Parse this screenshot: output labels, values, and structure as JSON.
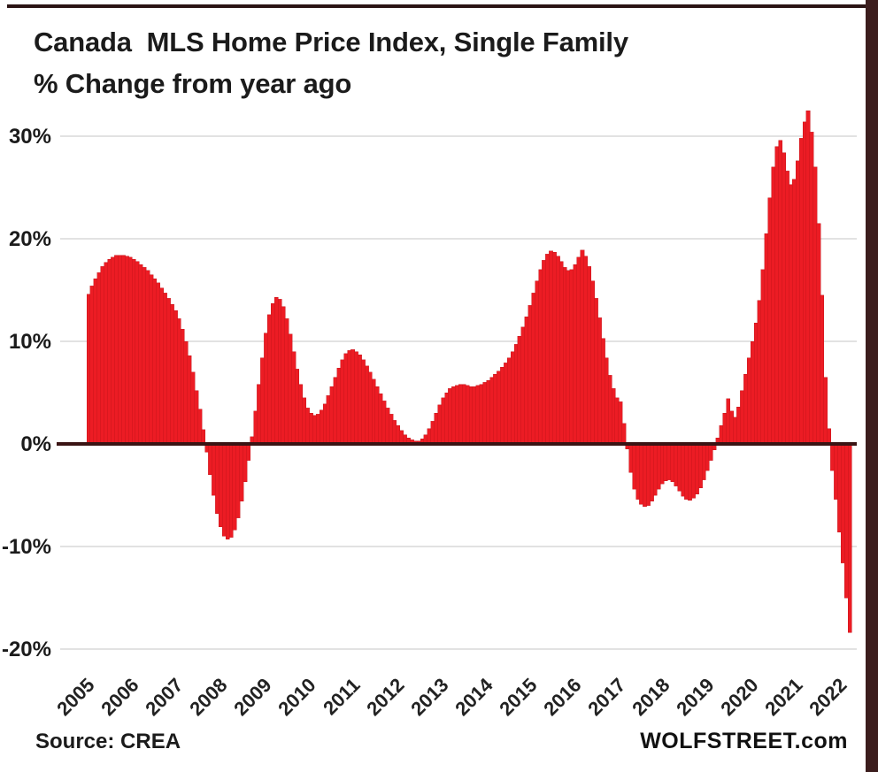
{
  "chart_data": {
    "type": "bar",
    "title": "Canada  MLS Home Price Index, Single Family",
    "subtitle": "% Change from year ago",
    "source_label": "Source: CREA",
    "watermark": "WOLFSTREET.com",
    "bar_color": "#ec1c24",
    "bar_edge_color": "#c01118",
    "zero_line_color": "#3a1414",
    "gridline_color": "#d8d8d8",
    "text_color": "#1b1b1b",
    "grid": true,
    "legend": "none",
    "frequency": "monthly",
    "x_start_label": "2005",
    "ylim": [
      -20,
      32.5
    ],
    "y_ticks": [
      {
        "label": "30%",
        "value": 30
      },
      {
        "label": "20%",
        "value": 20
      },
      {
        "label": "10%",
        "value": 10
      },
      {
        "label": "0%",
        "value": 0
      },
      {
        "label": "-10%",
        "value": -10
      },
      {
        "label": "-20%",
        "value": -20
      }
    ],
    "x_tick_years": [
      "2005",
      "2006",
      "2007",
      "2008",
      "2009",
      "2010",
      "2011",
      "2012",
      "2013",
      "2014",
      "2015",
      "2016",
      "2017",
      "2018",
      "2019",
      "2020",
      "2021",
      "2022"
    ],
    "values": [
      14.6,
      15.4,
      16.1,
      16.7,
      17.3,
      17.7,
      18.0,
      18.2,
      18.4,
      18.4,
      18.4,
      18.3,
      18.2,
      18.0,
      17.8,
      17.5,
      17.2,
      16.9,
      16.5,
      16.1,
      15.7,
      15.2,
      14.7,
      14.2,
      13.6,
      13.0,
      12.2,
      11.2,
      10.0,
      8.6,
      7.0,
      5.2,
      3.4,
      1.4,
      -0.8,
      -3.0,
      -5.0,
      -6.8,
      -8.1,
      -9.0,
      -9.3,
      -9.1,
      -8.4,
      -7.2,
      -5.6,
      -3.7,
      -1.6,
      0.7,
      3.2,
      5.8,
      8.4,
      10.8,
      12.6,
      13.7,
      14.3,
      14.1,
      13.4,
      12.2,
      10.7,
      9.0,
      7.3,
      5.8,
      4.5,
      3.5,
      3.0,
      2.8,
      2.9,
      3.3,
      3.9,
      4.7,
      5.6,
      6.5,
      7.4,
      8.2,
      8.8,
      9.1,
      9.2,
      9.0,
      8.7,
      8.2,
      7.6,
      7.0,
      6.3,
      5.6,
      4.9,
      4.2,
      3.5,
      2.9,
      2.3,
      1.8,
      1.3,
      0.9,
      0.6,
      0.4,
      0.3,
      0.3,
      0.5,
      0.9,
      1.5,
      2.2,
      3.0,
      3.8,
      4.5,
      5.0,
      5.4,
      5.6,
      5.7,
      5.8,
      5.8,
      5.7,
      5.6,
      5.6,
      5.7,
      5.8,
      6.0,
      6.2,
      6.5,
      6.8,
      7.1,
      7.5,
      7.9,
      8.4,
      9.0,
      9.7,
      10.5,
      11.4,
      12.4,
      13.5,
      14.7,
      15.9,
      17.0,
      17.9,
      18.5,
      18.8,
      18.7,
      18.3,
      17.8,
      17.2,
      16.9,
      17.0,
      17.5,
      18.2,
      18.9,
      18.3,
      17.3,
      15.9,
      14.2,
      12.3,
      10.3,
      8.4,
      6.7,
      5.4,
      4.5,
      4.1,
      2.0,
      -0.5,
      -2.8,
      -4.4,
      -5.4,
      -5.9,
      -6.1,
      -6.0,
      -5.6,
      -5.0,
      -4.4,
      -3.9,
      -3.6,
      -3.5,
      -3.7,
      -4.1,
      -4.6,
      -5.1,
      -5.4,
      -5.5,
      -5.3,
      -4.9,
      -4.3,
      -3.5,
      -2.6,
      -1.6,
      -0.6,
      0.6,
      1.8,
      3.0,
      4.4,
      3.2,
      2.6,
      3.6,
      5.2,
      6.8,
      8.4,
      10.0,
      11.8,
      14.0,
      17.0,
      20.5,
      24.0,
      27.0,
      29.0,
      29.6,
      28.4,
      26.6,
      25.3,
      25.8,
      27.6,
      29.8,
      31.4,
      32.5,
      30.4,
      27.0,
      21.5,
      14.5,
      6.5,
      1.5,
      -2.6,
      -5.4,
      -8.6,
      -11.6,
      -15.0,
      -18.4
    ]
  }
}
